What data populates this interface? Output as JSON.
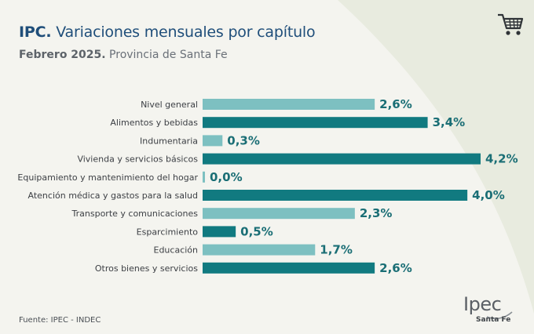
{
  "header": {
    "title_bold": "IPC.",
    "title_rest": " Variaciones mensuales por capítulo",
    "subtitle_bold": "Febrero 2025.",
    "subtitle_rest": " Provincia de Santa Fe"
  },
  "icons": {
    "cart": "shopping-cart-icon"
  },
  "colors": {
    "dark": "#117a80",
    "light": "#7dc0c1",
    "value_text": "#1a6e75",
    "background": "#f4f4ef",
    "arc": "#e8ebdf"
  },
  "chart_data": {
    "type": "bar",
    "orientation": "horizontal",
    "categories": [
      "Nivel general",
      "Alimentos y bebidas",
      "Indumentaria",
      "Vivienda y servicios básicos",
      "Equipamiento y mantenimiento del hogar",
      "Atención médica y gastos para la salud",
      "Transporte y comunicaciones",
      "Esparcimiento",
      "Educación",
      "Otros bienes y servicios"
    ],
    "values": [
      2.6,
      3.4,
      0.3,
      4.2,
      0.0,
      4.0,
      2.3,
      0.5,
      1.7,
      2.6
    ],
    "value_labels": [
      "2,6%",
      "3,4%",
      "0,3%",
      "4,2%",
      "0,0%",
      "4,0%",
      "2,3%",
      "0,5%",
      "1,7%",
      "2,6%"
    ],
    "bar_shades": [
      "light",
      "dark",
      "light",
      "dark",
      "light",
      "dark",
      "light",
      "dark",
      "light",
      "dark"
    ],
    "xlim": [
      0,
      4.2
    ],
    "grid": false,
    "legend": "none"
  },
  "footer": {
    "source": "Fuente: IPEC - INDEC",
    "logo_main": "Ipec",
    "logo_sub": "Santa Fe"
  }
}
